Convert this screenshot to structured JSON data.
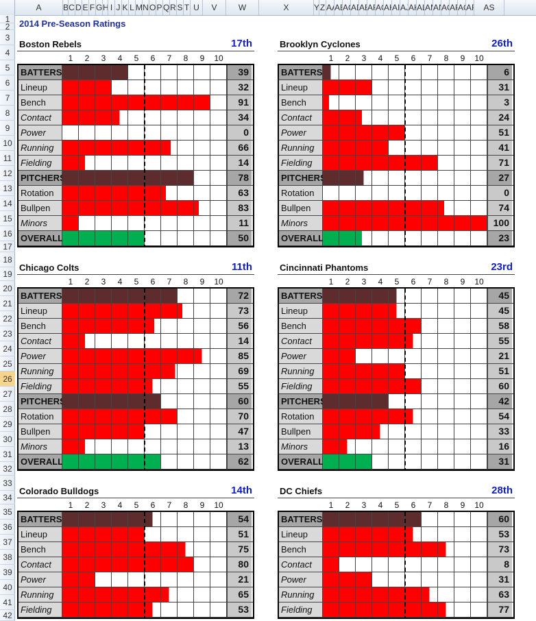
{
  "columns": [
    "A",
    "B",
    "C",
    "D",
    "E",
    "F",
    "G",
    "H",
    "I",
    "J",
    "K",
    "L",
    "M",
    "N",
    "O",
    "P",
    "Q",
    "R",
    "S",
    "T",
    "U",
    "V",
    "W",
    "X",
    "Y",
    "Z",
    "AA",
    "AB",
    "AC",
    "AD",
    "AE",
    "AF",
    "AG",
    "AH",
    "AI",
    "AJ",
    "AK",
    "AL",
    "AM",
    "AN",
    "AO",
    "AP",
    "AQ",
    "AR",
    "AS"
  ],
  "rows": [
    "1",
    "2",
    "3",
    "4",
    "5",
    "6",
    "7",
    "8",
    "9",
    "10",
    "11",
    "12",
    "13",
    "14",
    "15",
    "16",
    "17",
    "18",
    "19",
    "20",
    "21",
    "22",
    "23",
    "24",
    "25",
    "26",
    "27",
    "28",
    "29",
    "30",
    "31",
    "32",
    "33",
    "34",
    "35",
    "36",
    "37",
    "38",
    "39",
    "40",
    "41",
    "42"
  ],
  "active_row": "26",
  "sheet_title": "2014 Pre-Season Ratings",
  "scale": [
    "1",
    "2",
    "3",
    "4",
    "5",
    "6",
    "7",
    "8",
    "9",
    "10"
  ],
  "colors": {
    "red": "#ff0000",
    "brown": "#5e2c2c",
    "green": "#00b050",
    "rank": "#0f1ec2",
    "title": "#1f2f9e"
  },
  "teams": [
    {
      "name": "Boston Rebels",
      "rank": "17th",
      "rows": [
        {
          "label": "BATTERS",
          "kind": "header",
          "value": "39",
          "fill": 4
        },
        {
          "label": "Lineup",
          "kind": "normal",
          "value": "32",
          "fill": 3
        },
        {
          "label": "Bench",
          "kind": "normal",
          "value": "91",
          "fill": 9
        },
        {
          "label": "Contact",
          "kind": "italic",
          "value": "34",
          "fill": 3.5
        },
        {
          "label": "Power",
          "kind": "italic",
          "value": "0",
          "fill": 0
        },
        {
          "label": "Running",
          "kind": "italic",
          "value": "66",
          "fill": 6.6
        },
        {
          "label": "Fielding",
          "kind": "italic",
          "value": "14",
          "fill": 1.4
        },
        {
          "label": "PITCHERS",
          "kind": "header",
          "value": "78",
          "fill": 8
        },
        {
          "label": "Rotation",
          "kind": "normal",
          "value": "63",
          "fill": 6.3
        },
        {
          "label": "Bullpen",
          "kind": "normal",
          "value": "83",
          "fill": 8.3
        },
        {
          "label": "Minors",
          "kind": "italic",
          "value": "11",
          "fill": 1
        },
        {
          "label": "OVERALL",
          "kind": "header",
          "value": "50",
          "fill": 5
        }
      ]
    },
    {
      "name": "Brooklyn Cyclones",
      "rank": "26th",
      "rows": [
        {
          "label": "BATTERS",
          "kind": "header",
          "value": "6",
          "fill": 0.5
        },
        {
          "label": "Lineup",
          "kind": "normal",
          "value": "31",
          "fill": 3
        },
        {
          "label": "Bench",
          "kind": "normal",
          "value": "3",
          "fill": 0.4
        },
        {
          "label": "Contact",
          "kind": "italic",
          "value": "24",
          "fill": 2.4
        },
        {
          "label": "Power",
          "kind": "italic",
          "value": "51",
          "fill": 5
        },
        {
          "label": "Running",
          "kind": "italic",
          "value": "41",
          "fill": 4
        },
        {
          "label": "Fielding",
          "kind": "italic",
          "value": "71",
          "fill": 7
        },
        {
          "label": "PITCHERS",
          "kind": "header",
          "value": "27",
          "fill": 2.5
        },
        {
          "label": "Rotation",
          "kind": "normal",
          "value": "0",
          "fill": 0
        },
        {
          "label": "Bullpen",
          "kind": "normal",
          "value": "74",
          "fill": 7.4
        },
        {
          "label": "Minors",
          "kind": "italic",
          "value": "100",
          "fill": 10
        },
        {
          "label": "OVERALL",
          "kind": "header",
          "value": "23",
          "fill": 2.4
        }
      ]
    },
    {
      "name": "Chicago Colts",
      "rank": "11th",
      "rows": [
        {
          "label": "BATTERS",
          "kind": "header",
          "value": "72",
          "fill": 7
        },
        {
          "label": "Lineup",
          "kind": "normal",
          "value": "73",
          "fill": 7.3
        },
        {
          "label": "Bench",
          "kind": "normal",
          "value": "56",
          "fill": 5.6
        },
        {
          "label": "Contact",
          "kind": "italic",
          "value": "14",
          "fill": 1.4
        },
        {
          "label": "Power",
          "kind": "italic",
          "value": "85",
          "fill": 8.5
        },
        {
          "label": "Running",
          "kind": "italic",
          "value": "69",
          "fill": 6.9
        },
        {
          "label": "Fielding",
          "kind": "italic",
          "value": "55",
          "fill": 5.5
        },
        {
          "label": "PITCHERS",
          "kind": "header",
          "value": "60",
          "fill": 6
        },
        {
          "label": "Rotation",
          "kind": "normal",
          "value": "70",
          "fill": 7
        },
        {
          "label": "Bullpen",
          "kind": "normal",
          "value": "47",
          "fill": 5
        },
        {
          "label": "Minors",
          "kind": "italic",
          "value": "13",
          "fill": 1.4
        },
        {
          "label": "OVERALL",
          "kind": "header",
          "value": "62",
          "fill": 6
        }
      ]
    },
    {
      "name": "Cincinnati Phantoms",
      "rank": "23rd",
      "rows": [
        {
          "label": "BATTERS",
          "kind": "header",
          "value": "45",
          "fill": 4.5
        },
        {
          "label": "Lineup",
          "kind": "normal",
          "value": "45",
          "fill": 4.5
        },
        {
          "label": "Bench",
          "kind": "normal",
          "value": "58",
          "fill": 6
        },
        {
          "label": "Contact",
          "kind": "italic",
          "value": "55",
          "fill": 5.5
        },
        {
          "label": "Power",
          "kind": "italic",
          "value": "21",
          "fill": 2
        },
        {
          "label": "Running",
          "kind": "italic",
          "value": "51",
          "fill": 5
        },
        {
          "label": "Fielding",
          "kind": "italic",
          "value": "60",
          "fill": 6
        },
        {
          "label": "PITCHERS",
          "kind": "header",
          "value": "42",
          "fill": 4
        },
        {
          "label": "Rotation",
          "kind": "normal",
          "value": "54",
          "fill": 5.5
        },
        {
          "label": "Bullpen",
          "kind": "normal",
          "value": "33",
          "fill": 3.5
        },
        {
          "label": "Minors",
          "kind": "italic",
          "value": "16",
          "fill": 1.5
        },
        {
          "label": "OVERALL",
          "kind": "header",
          "value": "31",
          "fill": 3
        }
      ]
    },
    {
      "name": "Colorado Bulldogs",
      "rank": "14th",
      "rows": [
        {
          "label": "BATTERS",
          "kind": "header",
          "value": "54",
          "fill": 5.5
        },
        {
          "label": "Lineup",
          "kind": "normal",
          "value": "51",
          "fill": 5
        },
        {
          "label": "Bench",
          "kind": "normal",
          "value": "75",
          "fill": 7.5
        },
        {
          "label": "Contact",
          "kind": "italic",
          "value": "80",
          "fill": 8
        },
        {
          "label": "Power",
          "kind": "italic",
          "value": "21",
          "fill": 2
        },
        {
          "label": "Running",
          "kind": "italic",
          "value": "65",
          "fill": 6.5
        },
        {
          "label": "Fielding",
          "kind": "italic",
          "value": "53",
          "fill": 5.5
        }
      ]
    },
    {
      "name": "DC Chiefs",
      "rank": "28th",
      "rows": [
        {
          "label": "BATTERS",
          "kind": "header",
          "value": "60",
          "fill": 6
        },
        {
          "label": "Lineup",
          "kind": "normal",
          "value": "53",
          "fill": 5.5
        },
        {
          "label": "Bench",
          "kind": "normal",
          "value": "73",
          "fill": 7.5
        },
        {
          "label": "Contact",
          "kind": "italic",
          "value": "8",
          "fill": 1
        },
        {
          "label": "Power",
          "kind": "italic",
          "value": "31",
          "fill": 3
        },
        {
          "label": "Running",
          "kind": "italic",
          "value": "63",
          "fill": 6.5
        },
        {
          "label": "Fielding",
          "kind": "italic",
          "value": "77",
          "fill": 7.5
        }
      ]
    }
  ]
}
